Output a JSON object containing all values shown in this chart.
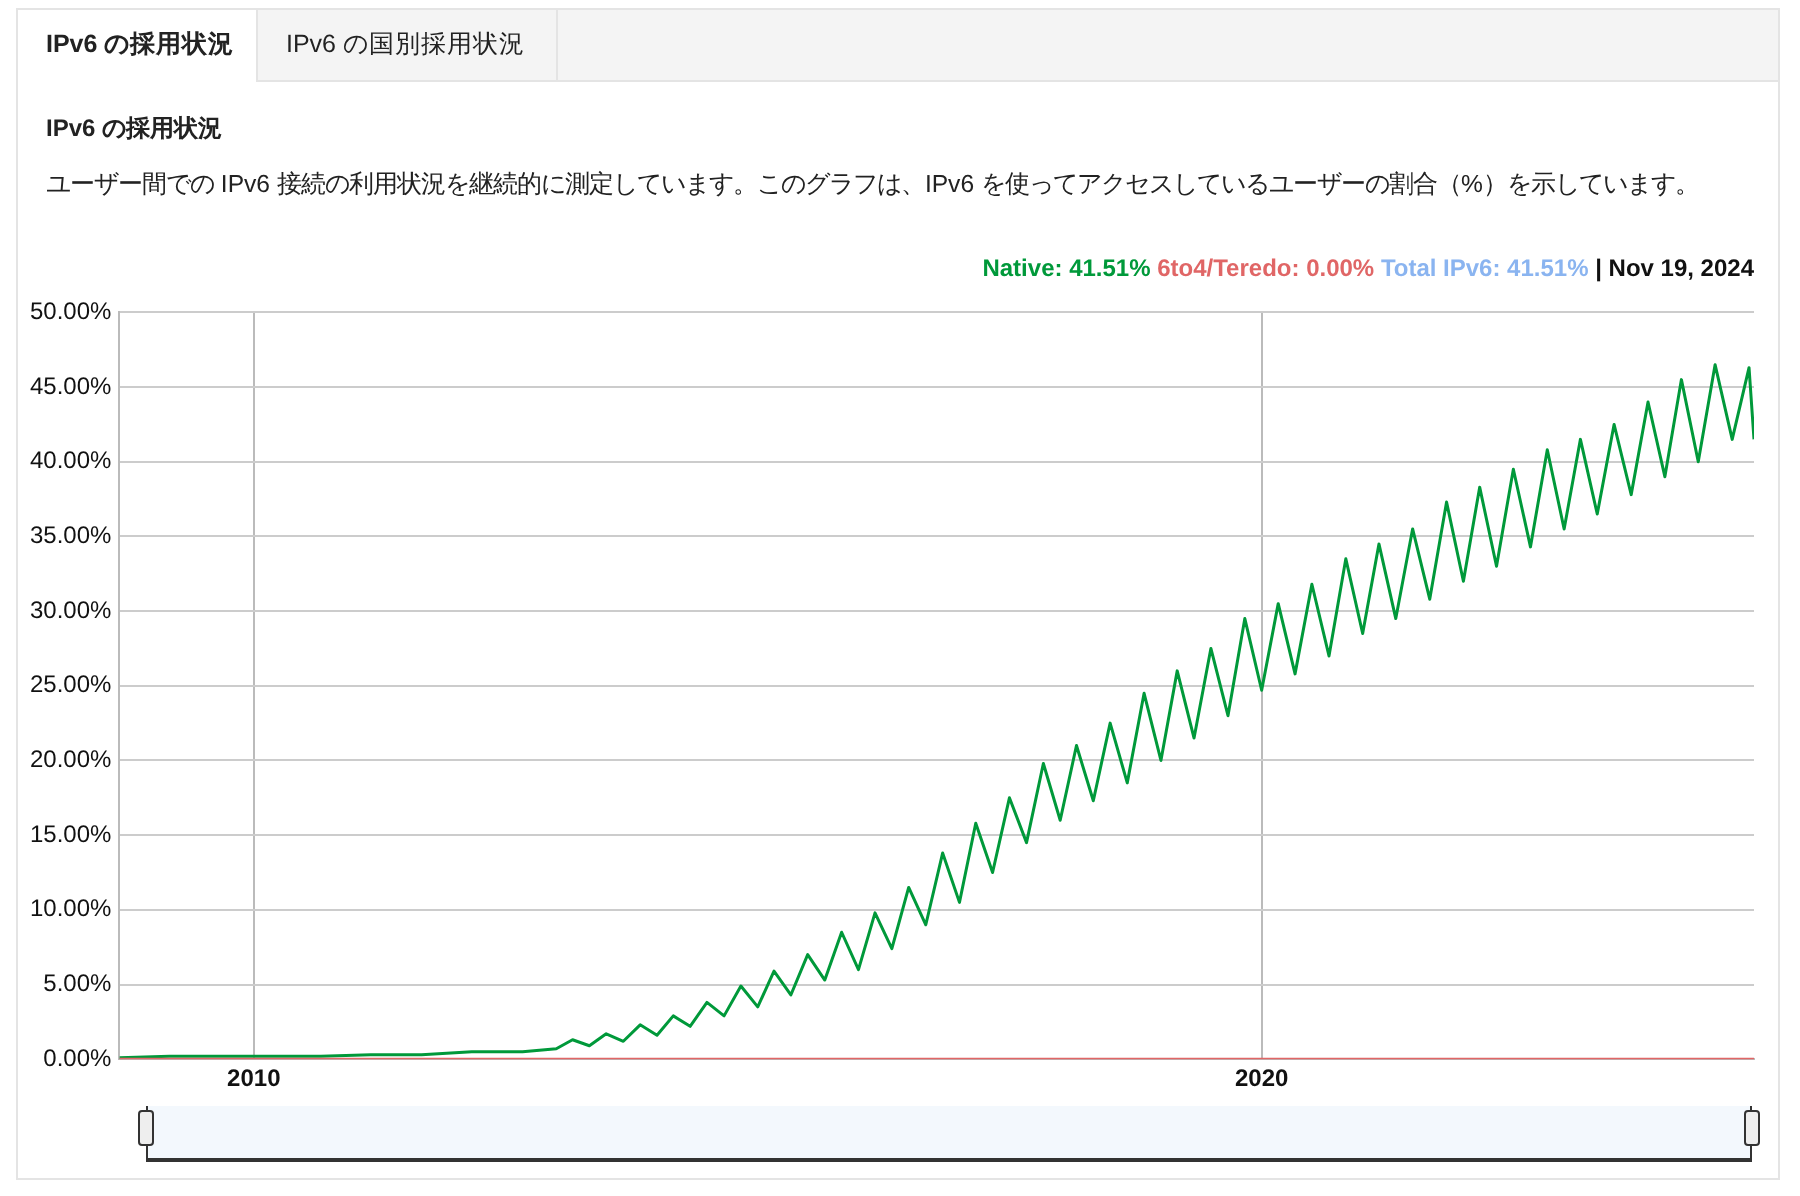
{
  "chart_data": {
    "type": "line",
    "title": "IPv6 の採用状況",
    "subtitle": "ユーザー間での IPv6 接続の利用状況を継続的に測定しています。このグラフは、IPv6 を使ってアクセスしているユーザーの割合（%）を示しています。",
    "annotations": [
      ": 41.51%",
      ": 0.00%",
      "Total IPv6: 41.51%",
      "| Nov 19, 2024",
      "IPv6 の国別採用状況"
    ],
    "xlim": [
      "2008-09-01",
      "2024-11-19"
    ],
    "xticks": [
      {
        "value": "2010-01-01",
        "label": "2010"
      },
      {
        "value": "2020-01-01",
        "label": "2020"
      }
    ],
    "ylim": [
      0,
      50
    ],
    "yticks": [
      {
        "value": 0,
        "label": "0.00%"
      },
      {
        "value": 5,
        "label": "5.00%"
      },
      {
        "value": 10,
        "label": "10.00%"
      },
      {
        "value": 15,
        "label": "15.00%"
      },
      {
        "value": 20,
        "label": "20.00%"
      },
      {
        "value": 25,
        "label": "25.00%"
      },
      {
        "value": 30,
        "label": "30.00%"
      },
      {
        "value": 35,
        "label": "35.00%"
      },
      {
        "value": 40,
        "label": "40.00%"
      },
      {
        "value": 45,
        "label": "45.00%"
      },
      {
        "value": 50,
        "label": "50.00%"
      }
    ],
    "grid": true,
    "marker": "none",
    "line_style": "solid",
    "series": [
      {
        "name": "Native",
        "color": "#00993a",
        "x": [
          "2008-09-01",
          "2009-03-01",
          "2009-09-01",
          "2010-03-01",
          "2010-09-01",
          "2011-03-01",
          "2011-09-01",
          "2012-03-01",
          "2012-09-01",
          "2013-01-01",
          "2013-03-01",
          "2013-05-01",
          "2013-07-01",
          "2013-09-01",
          "2013-11-01",
          "2014-01-01",
          "2014-03-01",
          "2014-05-01",
          "2014-07-01",
          "2014-09-01",
          "2014-11-01",
          "2015-01-01",
          "2015-03-01",
          "2015-05-01",
          "2015-07-01",
          "2015-09-01",
          "2015-11-01",
          "2016-01-01",
          "2016-03-01",
          "2016-05-01",
          "2016-07-01",
          "2016-09-01",
          "2016-11-01",
          "2017-01-01",
          "2017-03-01",
          "2017-05-01",
          "2017-07-01",
          "2017-09-01",
          "2017-11-01",
          "2018-01-01",
          "2018-03-01",
          "2018-05-01",
          "2018-07-01",
          "2018-09-01",
          "2018-11-01",
          "2019-01-01",
          "2019-03-01",
          "2019-05-01",
          "2019-07-01",
          "2019-09-01",
          "2019-11-01",
          "2020-01-01",
          "2020-03-01",
          "2020-05-01",
          "2020-07-01",
          "2020-09-01",
          "2020-11-01",
          "2021-01-01",
          "2021-03-01",
          "2021-05-01",
          "2021-07-01",
          "2021-09-01",
          "2021-11-01",
          "2022-01-01",
          "2022-03-01",
          "2022-05-01",
          "2022-07-01",
          "2022-09-01",
          "2022-11-01",
          "2023-01-01",
          "2023-03-01",
          "2023-05-01",
          "2023-07-01",
          "2023-09-01",
          "2023-11-01",
          "2024-01-01",
          "2024-03-01",
          "2024-05-01",
          "2024-07-01",
          "2024-09-01",
          "2024-11-01",
          "2024-11-19"
        ],
        "values": [
          0.1,
          0.2,
          0.2,
          0.2,
          0.2,
          0.3,
          0.3,
          0.5,
          0.5,
          0.7,
          1.3,
          0.9,
          1.7,
          1.2,
          2.3,
          1.6,
          2.9,
          2.2,
          3.8,
          2.9,
          4.9,
          3.5,
          5.9,
          4.3,
          7.0,
          5.3,
          8.5,
          6.0,
          9.8,
          7.4,
          11.5,
          9.0,
          13.8,
          10.5,
          15.8,
          12.5,
          17.5,
          14.5,
          19.8,
          16.0,
          21.0,
          17.3,
          22.5,
          18.5,
          24.5,
          20.0,
          26.0,
          21.5,
          27.5,
          23.0,
          29.5,
          24.7,
          30.5,
          25.8,
          31.8,
          27.0,
          33.5,
          28.5,
          34.5,
          29.5,
          35.5,
          30.8,
          37.3,
          32.0,
          38.3,
          33.0,
          39.5,
          34.3,
          40.8,
          35.5,
          41.5,
          36.5,
          42.5,
          37.8,
          44.0,
          39.0,
          45.5,
          40.0,
          46.5,
          41.5,
          46.3,
          41.5
        ]
      },
      {
        "name": "6to4/Teredo",
        "color": "#e06666",
        "x": [
          "2008-09-01",
          "2024-11-19"
        ],
        "values": [
          0,
          0
        ]
      }
    ]
  }
}
